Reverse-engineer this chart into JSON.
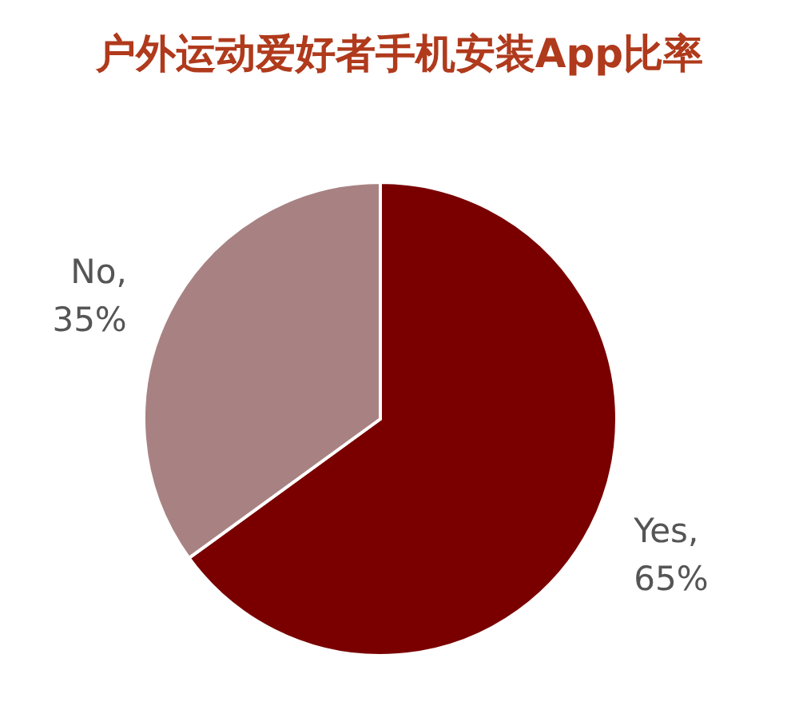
{
  "chart_data": {
    "type": "pie",
    "title": "户外运动爱好者手机安装App比率",
    "categories": [
      "Yes",
      "No"
    ],
    "values": [
      65,
      35
    ],
    "value_labels": [
      ",\n65%",
      ",\n35%"
    ],
    "colors": [
      "#7a0000",
      "#a88282"
    ],
    "legend": false
  }
}
